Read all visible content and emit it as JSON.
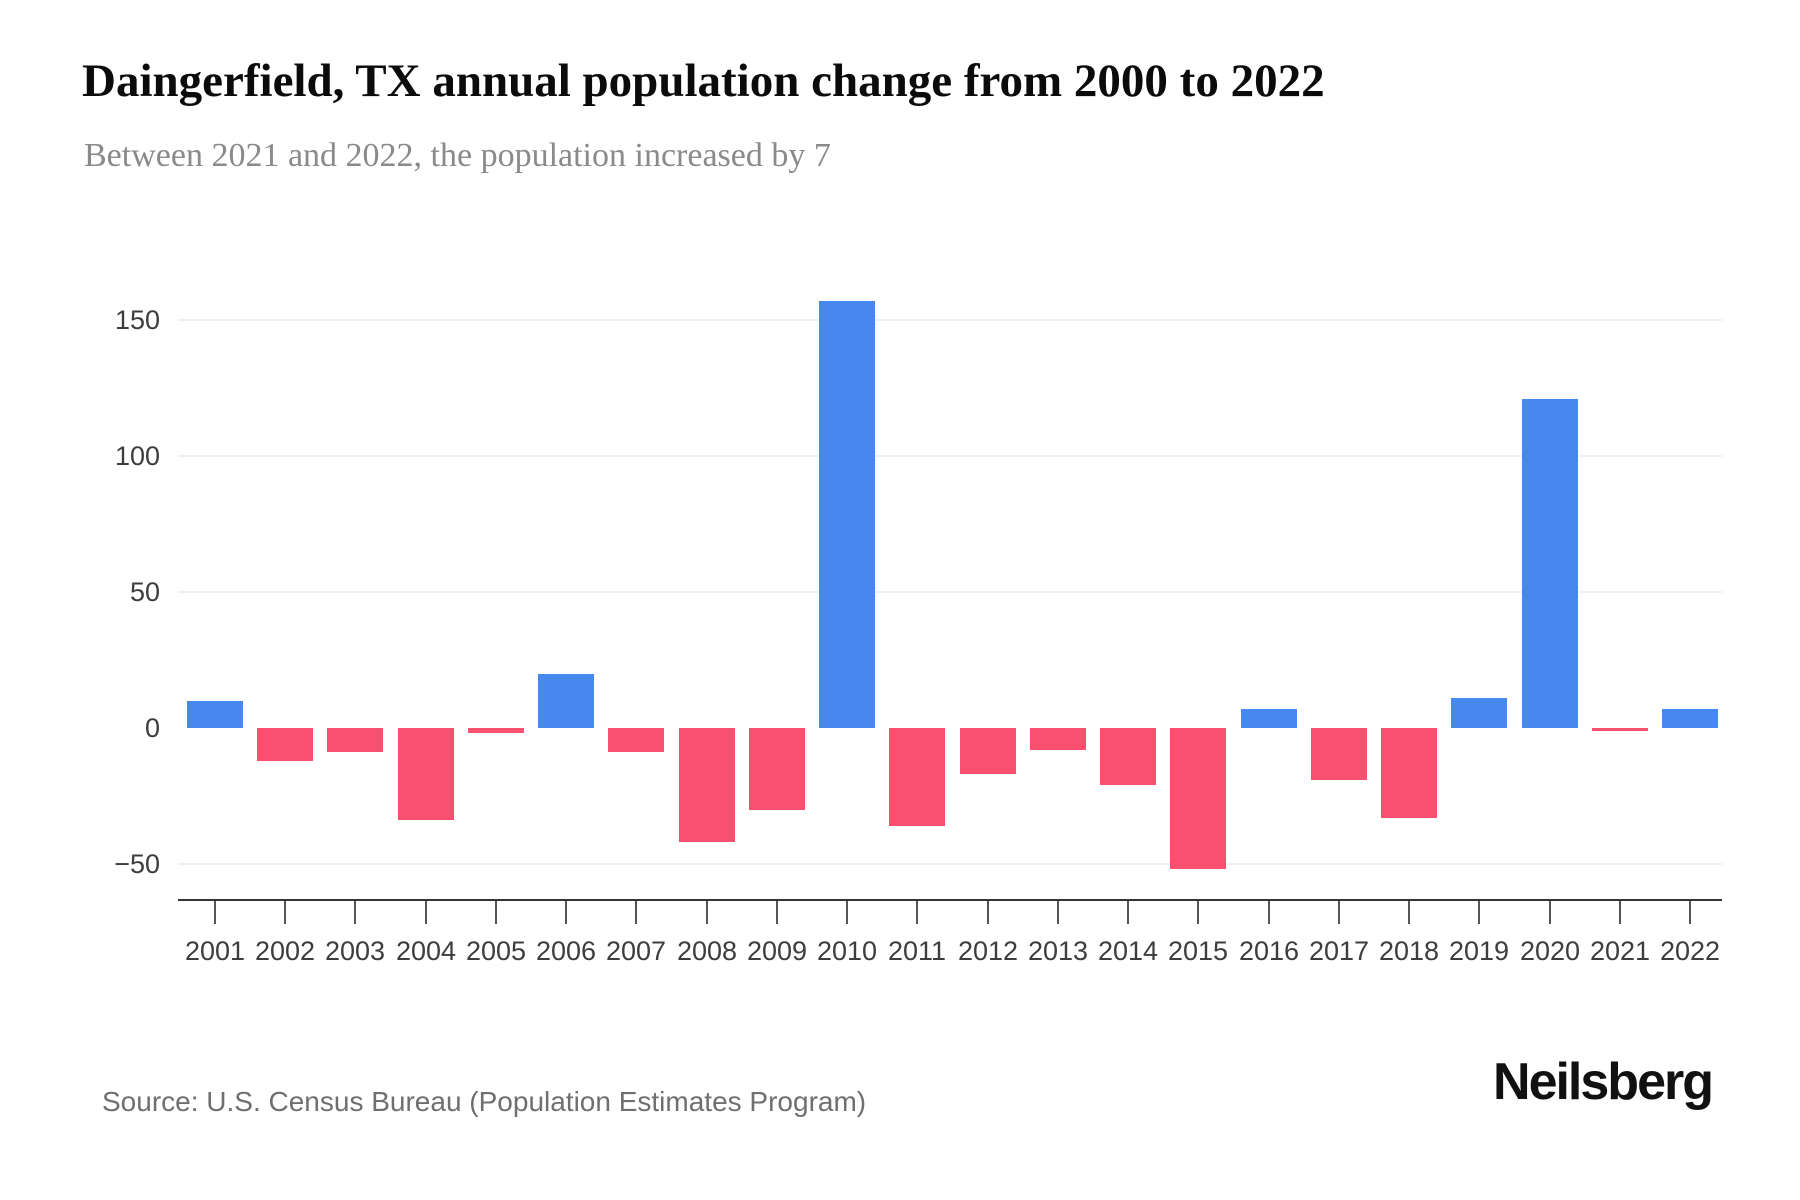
{
  "header": {
    "title": "Daingerfield, TX annual population change from 2000 to 2022",
    "subtitle": "Between 2021 and 2022, the population increased by 7"
  },
  "footer": {
    "source": "Source: U.S. Census Bureau (Population Estimates Program)",
    "brand": "Neilsberg"
  },
  "chart_data": {
    "type": "bar",
    "title": "Daingerfield, TX annual population change from 2000 to 2022",
    "subtitle": "Between 2021 and 2022, the population increased by 7",
    "categories": [
      "2001",
      "2002",
      "2003",
      "2004",
      "2005",
      "2006",
      "2007",
      "2008",
      "2009",
      "2010",
      "2011",
      "2012",
      "2013",
      "2014",
      "2015",
      "2016",
      "2017",
      "2018",
      "2019",
      "2020",
      "2021",
      "2022"
    ],
    "values": [
      10,
      -12,
      -9,
      -34,
      -2,
      20,
      -9,
      -42,
      -30,
      157,
      -36,
      -17,
      -8,
      -21,
      -52,
      7,
      -19,
      -33,
      11,
      121,
      -1,
      7
    ],
    "xlabel": "",
    "ylabel": "",
    "y_ticks": [
      {
        "value": 150,
        "label": "150"
      },
      {
        "value": 100,
        "label": "100"
      },
      {
        "value": 50,
        "label": "50"
      },
      {
        "value": 0,
        "label": "0"
      },
      {
        "value": -50,
        "label": "−50"
      }
    ],
    "ylim": [
      -64,
      159
    ],
    "grid": "horizontal-light, no line at zero",
    "legend": "none",
    "colors": {
      "positive": "#4687F0",
      "negative": "#F8506E",
      "gridline": "#f0f0f0",
      "axis_line": "#333333",
      "tick_label": "#3d3d3d"
    }
  }
}
